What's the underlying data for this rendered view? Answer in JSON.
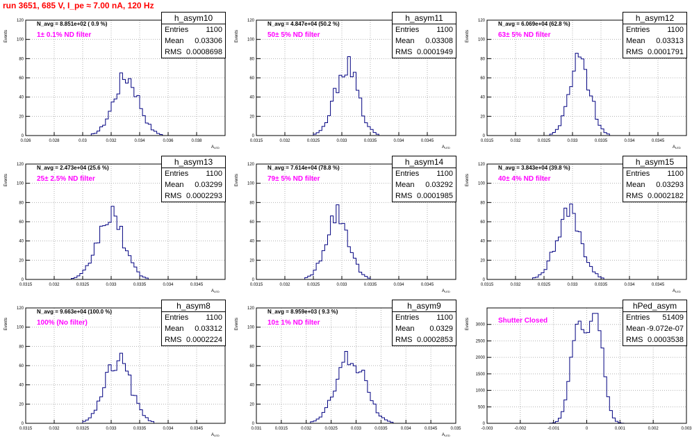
{
  "page_title": "run 3651,   685 V, I_pe ≈ 7.00 nA, 120 Hz",
  "colors": {
    "title": "#ff0000",
    "filter_text": "#ff00ff",
    "hist_line": "#000080",
    "grid": "#b0b0b0"
  },
  "chart_data": [
    {
      "type": "histogram",
      "name": "h_asym10",
      "stats": {
        "Entries": "1100",
        "Mean": "0.03306",
        "RMS": "0.0008698"
      },
      "navg": "N_avg = 8.851e+02 ( 0.9 %)",
      "filter": "1± 0.1% ND filter",
      "ylabel": "Events",
      "xlabel": "A_LED",
      "xlim": [
        0.026,
        0.04
      ],
      "ylim": [
        0,
        120
      ],
      "yticks": [
        0,
        20,
        40,
        60,
        80,
        100,
        120
      ],
      "xticks": [
        0.026,
        0.028,
        0.03,
        0.032,
        0.034,
        0.036,
        0.038
      ],
      "xticklabels": [
        "0.026",
        "0.028",
        "0.03",
        "0.032",
        "0.034",
        "0.036",
        "0.038"
      ],
      "mean": 0.03306,
      "rms": 0.0008698,
      "peak": 62,
      "shape": "gauss"
    },
    {
      "type": "histogram",
      "name": "h_asym11",
      "stats": {
        "Entries": "1100",
        "Mean": "0.03308",
        "RMS": "0.0001949"
      },
      "navg": "N_avg = 4.847e+04 (50.2 %)",
      "filter": "50± 5% ND filter",
      "ylabel": "Events",
      "xlabel": "A_LED",
      "xlim": [
        0.0315,
        0.035
      ],
      "ylim": [
        0,
        120
      ],
      "yticks": [
        0,
        20,
        40,
        60,
        80,
        100,
        120
      ],
      "xticks": [
        0.0315,
        0.032,
        0.0325,
        0.033,
        0.0335,
        0.034,
        0.0345
      ],
      "xticklabels": [
        "0.0315",
        "0.032",
        "0.0325",
        "0.033",
        "0.0335",
        "0.034",
        "0.0345"
      ],
      "mean": 0.03308,
      "rms": 0.0001949,
      "peak": 76,
      "shape": "gauss"
    },
    {
      "type": "histogram",
      "name": "h_asym12",
      "stats": {
        "Entries": "1100",
        "Mean": "0.03313",
        "RMS": "0.0001791"
      },
      "navg": "N_avg = 6.069e+04 (62.8 %)",
      "filter": "63± 5% ND filter",
      "ylabel": "Events",
      "xlabel": "A_LED",
      "xlim": [
        0.0315,
        0.035
      ],
      "ylim": [
        0,
        120
      ],
      "yticks": [
        0,
        20,
        40,
        60,
        80,
        100,
        120
      ],
      "xticks": [
        0.0315,
        0.032,
        0.0325,
        0.033,
        0.0335,
        0.034,
        0.0345
      ],
      "xticklabels": [
        "0.0315",
        "0.032",
        "0.0325",
        "0.033",
        "0.0335",
        "0.034",
        "0.0345"
      ],
      "mean": 0.03313,
      "rms": 0.0001791,
      "peak": 81,
      "shape": "gauss"
    },
    {
      "type": "histogram",
      "name": "h_asym13",
      "stats": {
        "Entries": "1100",
        "Mean": "0.03299",
        "RMS": "0.0002293"
      },
      "navg": "N_avg = 2.473e+04 (25.6 %)",
      "filter": "25± 2.5% ND filter",
      "ylabel": "Events",
      "xlabel": "A_LED",
      "xlim": [
        0.0315,
        0.035
      ],
      "ylim": [
        0,
        120
      ],
      "yticks": [
        0,
        20,
        40,
        60,
        80,
        100,
        120
      ],
      "xticks": [
        0.0315,
        0.032,
        0.0325,
        0.033,
        0.0335,
        0.034,
        0.0345
      ],
      "xticklabels": [
        "0.0315",
        "0.032",
        "0.0325",
        "0.033",
        "0.0335",
        "0.034",
        "0.0345"
      ],
      "mean": 0.03299,
      "rms": 0.0002293,
      "peak": 68,
      "shape": "gauss"
    },
    {
      "type": "histogram",
      "name": "h_asym14",
      "stats": {
        "Entries": "1100",
        "Mean": "0.03292",
        "RMS": "0.0001985"
      },
      "navg": "N_avg = 7.614e+04 (78.8 %)",
      "filter": "79± 5% ND filter",
      "ylabel": "Events",
      "xlabel": "A_LED",
      "xlim": [
        0.0315,
        0.035
      ],
      "ylim": [
        0,
        120
      ],
      "yticks": [
        0,
        20,
        40,
        60,
        80,
        100,
        120
      ],
      "xticks": [
        0.0315,
        0.032,
        0.0325,
        0.033,
        0.0335,
        0.034,
        0.0345
      ],
      "xticklabels": [
        "0.0315",
        "0.032",
        "0.0325",
        "0.033",
        "0.0335",
        "0.034",
        "0.0345"
      ],
      "mean": 0.03292,
      "rms": 0.0001985,
      "peak": 72,
      "shape": "gauss"
    },
    {
      "type": "histogram",
      "name": "h_asym15",
      "stats": {
        "Entries": "1100",
        "Mean": "0.03293",
        "RMS": "0.0002182"
      },
      "navg": "N_avg = 3.843e+04 (39.8 %)",
      "filter": "40± 4% ND filter",
      "ylabel": "Events",
      "xlabel": "A_LED",
      "xlim": [
        0.0315,
        0.035
      ],
      "ylim": [
        0,
        120
      ],
      "yticks": [
        0,
        20,
        40,
        60,
        80,
        100,
        120
      ],
      "xticks": [
        0.0315,
        0.032,
        0.0325,
        0.033,
        0.0335,
        0.034,
        0.0345
      ],
      "xticklabels": [
        "0.0315",
        "0.032",
        "0.0325",
        "0.033",
        "0.0335",
        "0.034",
        "0.0345"
      ],
      "mean": 0.03293,
      "rms": 0.0002182,
      "peak": 70,
      "shape": "gauss"
    },
    {
      "type": "histogram",
      "name": "h_asym8",
      "stats": {
        "Entries": "1100",
        "Mean": "0.03312",
        "RMS": "0.0002224"
      },
      "navg": "N_avg = 9.663e+04 (100.0 %)",
      "filter": "100% (No filter)",
      "ylabel": "Events",
      "xlabel": "A_LED",
      "xlim": [
        0.0315,
        0.035
      ],
      "ylim": [
        0,
        120
      ],
      "yticks": [
        0,
        20,
        40,
        60,
        80,
        100,
        120
      ],
      "xticks": [
        0.0315,
        0.032,
        0.0325,
        0.033,
        0.0335,
        0.034,
        0.0345
      ],
      "xticklabels": [
        "0.0315",
        "0.032",
        "0.0325",
        "0.033",
        "0.0335",
        "0.034",
        "0.0345"
      ],
      "mean": 0.03312,
      "rms": 0.0002224,
      "peak": 68,
      "shape": "gauss"
    },
    {
      "type": "histogram",
      "name": "h_asym9",
      "stats": {
        "Entries": "1100",
        "Mean": "0.0329",
        "RMS": "0.0002853"
      },
      "navg": "N_avg = 8.959e+03 ( 9.3 %)",
      "filter": "10± 1% ND filter",
      "ylabel": "Events",
      "xlabel": "A_LED",
      "xlim": [
        0.031,
        0.035
      ],
      "ylim": [
        0,
        120
      ],
      "yticks": [
        0,
        20,
        40,
        60,
        80,
        100,
        120
      ],
      "xticks": [
        0.031,
        0.0315,
        0.032,
        0.0325,
        0.033,
        0.0335,
        0.034,
        0.0345,
        0.035
      ],
      "xticklabels": [
        "0.031",
        "0.0315",
        "0.032",
        "0.0325",
        "0.033",
        "0.0335",
        "0.034",
        "0.0345",
        "0.035"
      ],
      "mean": 0.0329,
      "rms": 0.0002853,
      "peak": 72,
      "shape": "gauss"
    },
    {
      "type": "histogram",
      "name": "hPed_asym",
      "stats": {
        "Entries": "51409",
        "Mean": "-9.072e-07",
        "RMS": "0.0003538"
      },
      "navg": "",
      "filter": "Shutter Closed",
      "ylabel": "Events",
      "xlabel": "",
      "xlim": [
        -0.003,
        0.003
      ],
      "ylim": [
        0,
        3500
      ],
      "yticks": [
        0,
        500,
        1000,
        1500,
        2000,
        2500,
        3000
      ],
      "xticks": [
        -0.003,
        -0.002,
        -0.001,
        0,
        0.001,
        0.002,
        0.003
      ],
      "xticklabels": [
        "-0.003",
        "-0.002",
        "-0.001",
        "0",
        "0.001",
        "0.002",
        "0.003"
      ],
      "mean": -9.072e-07,
      "rms": 0.0003538,
      "peak": 3200,
      "shape": "double"
    }
  ]
}
